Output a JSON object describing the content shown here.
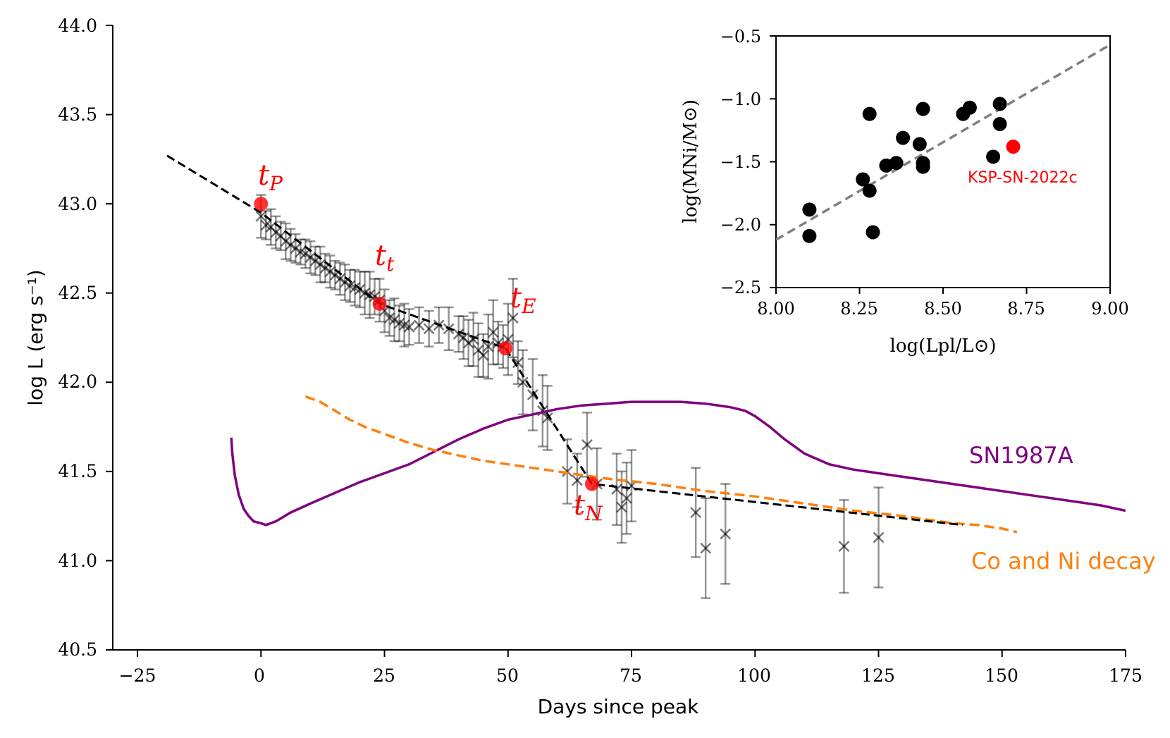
{
  "chart_data": [
    {
      "type": "line",
      "id": "main",
      "xlabel": "Days since peak",
      "ylabel": "log L (erg s⁻¹)",
      "xlim": [
        -30,
        175
      ],
      "ylim": [
        40.5,
        44.0
      ],
      "xticks": [
        -25,
        0,
        25,
        50,
        75,
        100,
        125,
        150,
        175
      ],
      "yticks": [
        40.5,
        41.0,
        41.5,
        42.0,
        42.5,
        43.0,
        43.5,
        44.0
      ],
      "xtick_labels": [
        "−25",
        "0",
        "25",
        "50",
        "75",
        "100",
        "125",
        "150",
        "175"
      ],
      "ytick_labels": [
        "40.5",
        "41.0",
        "41.5",
        "42.0",
        "42.5",
        "43.0",
        "43.5",
        "44.0"
      ],
      "series": [
        {
          "name": "SN1987A",
          "label": "SN1987A",
          "color": "#800080",
          "style": "solid",
          "x": [
            -6,
            -5.8,
            -5.3,
            -4.5,
            -3.5,
            -2.5,
            -1.5,
            0,
            1,
            3,
            6,
            10,
            15,
            20,
            25,
            30,
            35,
            40,
            45,
            50,
            55,
            60,
            65,
            70,
            75,
            80,
            85,
            90,
            95,
            98,
            100,
            103,
            106,
            110,
            115,
            120,
            125,
            130,
            135,
            140,
            145,
            150,
            155,
            160,
            165,
            170,
            175
          ],
          "y": [
            41.69,
            41.6,
            41.48,
            41.37,
            41.29,
            41.25,
            41.22,
            41.21,
            41.2,
            41.22,
            41.27,
            41.32,
            41.38,
            41.44,
            41.49,
            41.54,
            41.61,
            41.68,
            41.74,
            41.79,
            41.82,
            41.85,
            41.87,
            41.88,
            41.89,
            41.89,
            41.89,
            41.88,
            41.86,
            41.84,
            41.81,
            41.75,
            41.68,
            41.6,
            41.54,
            41.51,
            41.49,
            41.47,
            41.45,
            41.43,
            41.41,
            41.39,
            41.37,
            41.35,
            41.33,
            41.31,
            41.28
          ]
        },
        {
          "name": "Co and Ni decay",
          "label": "Co and Ni decay",
          "color": "#ff7f0e",
          "style": "dashed",
          "x": [
            9,
            12,
            15,
            18,
            21,
            25,
            30,
            35,
            40,
            45,
            50,
            55,
            60,
            70,
            80,
            90,
            100,
            110,
            120,
            130,
            140,
            145,
            150,
            153
          ],
          "y": [
            41.92,
            41.89,
            41.84,
            41.79,
            41.75,
            41.71,
            41.66,
            41.62,
            41.59,
            41.56,
            41.54,
            41.52,
            41.5,
            41.46,
            41.43,
            41.39,
            41.36,
            41.32,
            41.28,
            41.25,
            41.21,
            41.2,
            41.18,
            41.16
          ]
        },
        {
          "name": "broken-line fit",
          "color": "#000000",
          "style": "dashed",
          "x": [
            -19,
            0,
            24,
            49.5,
            67,
            142
          ],
          "y": [
            43.27,
            42.95,
            42.44,
            42.19,
            41.43,
            41.2
          ]
        }
      ],
      "observations": {
        "color": "#000000",
        "marker": "x",
        "x": [
          0,
          1,
          2,
          3,
          4,
          5,
          6,
          7,
          8,
          9,
          10,
          11,
          12,
          13,
          14,
          15,
          16,
          17,
          18,
          19,
          20,
          21,
          22,
          23,
          24,
          25,
          26,
          27,
          28,
          29,
          30,
          32,
          34,
          36,
          38,
          40,
          41,
          42,
          43,
          44,
          45,
          46,
          47,
          48,
          49,
          50,
          51,
          52,
          53,
          55,
          57,
          58,
          62,
          64,
          66,
          68,
          72,
          73,
          74,
          75,
          88,
          90,
          94,
          118,
          125
        ],
        "y": [
          42.93,
          42.88,
          42.87,
          42.84,
          42.82,
          42.79,
          42.77,
          42.75,
          42.73,
          42.72,
          42.7,
          42.68,
          42.66,
          42.64,
          42.62,
          42.6,
          42.58,
          42.56,
          42.54,
          42.53,
          42.52,
          42.5,
          42.49,
          42.48,
          42.46,
          42.4,
          42.36,
          42.35,
          42.33,
          42.32,
          42.31,
          42.32,
          42.3,
          42.32,
          42.3,
          42.27,
          42.25,
          42.22,
          42.24,
          42.18,
          42.15,
          42.2,
          42.28,
          42.22,
          42.2,
          42.24,
          42.36,
          42.11,
          42.0,
          41.93,
          41.84,
          41.8,
          41.5,
          41.45,
          41.65,
          41.43,
          41.4,
          41.3,
          41.35,
          41.42,
          41.27,
          41.07,
          41.15,
          41.08,
          41.13
        ],
        "yerr": [
          0.12,
          0.08,
          0.1,
          0.09,
          0.08,
          0.1,
          0.09,
          0.08,
          0.07,
          0.08,
          0.09,
          0.08,
          0.1,
          0.08,
          0.09,
          0.08,
          0.09,
          0.1,
          0.09,
          0.1,
          0.1,
          0.12,
          0.13,
          0.1,
          0.12,
          0.12,
          0.1,
          0.12,
          0.1,
          0.12,
          0.1,
          0.1,
          0.1,
          0.1,
          0.12,
          0.1,
          0.12,
          0.13,
          0.15,
          0.15,
          0.12,
          0.18,
          0.18,
          0.12,
          0.12,
          0.2,
          0.22,
          0.12,
          0.18,
          0.2,
          0.2,
          0.18,
          0.18,
          0.15,
          0.18,
          0.2,
          0.2,
          0.2,
          0.2,
          0.2,
          0.25,
          0.28,
          0.28,
          0.26,
          0.28
        ]
      },
      "epochs": [
        {
          "label": "t",
          "sub": "P",
          "x": 0,
          "y": 43.0,
          "color": "#ff0000"
        },
        {
          "label": "t",
          "sub": "t",
          "x": 24,
          "y": 42.44,
          "color": "#ff0000"
        },
        {
          "label": "t",
          "sub": "E",
          "x": 49.5,
          "y": 42.19,
          "color": "#ff0000"
        },
        {
          "label": "t",
          "sub": "N",
          "x": 67,
          "y": 41.43,
          "color": "#ff0000"
        }
      ],
      "annotations": [
        {
          "text": "SN1987A",
          "color": "#800080"
        },
        {
          "text": "Co and Ni decay",
          "color": "#ff7f0e"
        }
      ]
    },
    {
      "type": "scatter",
      "id": "inset",
      "xlabel": "log(Lpl/L⊙)",
      "ylabel": "log(MNi/M⊙)",
      "xlim": [
        8.0,
        9.0
      ],
      "ylim": [
        -2.5,
        -0.5
      ],
      "xticks": [
        8.0,
        8.25,
        8.5,
        8.75,
        9.0
      ],
      "yticks": [
        -2.5,
        -2.0,
        -1.5,
        -1.0,
        -0.5
      ],
      "xtick_labels": [
        "8.00",
        "8.25",
        "8.50",
        "8.75",
        "9.00"
      ],
      "ytick_labels": [
        "−2.5",
        "−2.0",
        "−1.5",
        "−1.0",
        "−0.5"
      ],
      "points": {
        "color": "#000000",
        "x": [
          8.1,
          8.1,
          8.26,
          8.28,
          8.28,
          8.29,
          8.33,
          8.36,
          8.38,
          8.43,
          8.44,
          8.44,
          8.44,
          8.56,
          8.58,
          8.65,
          8.67,
          8.67
        ],
        "y": [
          -1.88,
          -2.09,
          -1.64,
          -1.12,
          -1.73,
          -2.06,
          -1.53,
          -1.51,
          -1.31,
          -1.36,
          -1.08,
          -1.51,
          -1.54,
          -1.12,
          -1.07,
          -1.46,
          -1.04,
          -1.2
        ]
      },
      "highlight": {
        "label": "KSP-SN-2022c",
        "x": 8.71,
        "y": -1.38,
        "color": "#ff0000"
      },
      "fit": {
        "color": "#808080",
        "style": "dashed",
        "x": [
          8.0,
          9.0
        ],
        "y": [
          -2.12,
          -0.57
        ]
      }
    }
  ]
}
